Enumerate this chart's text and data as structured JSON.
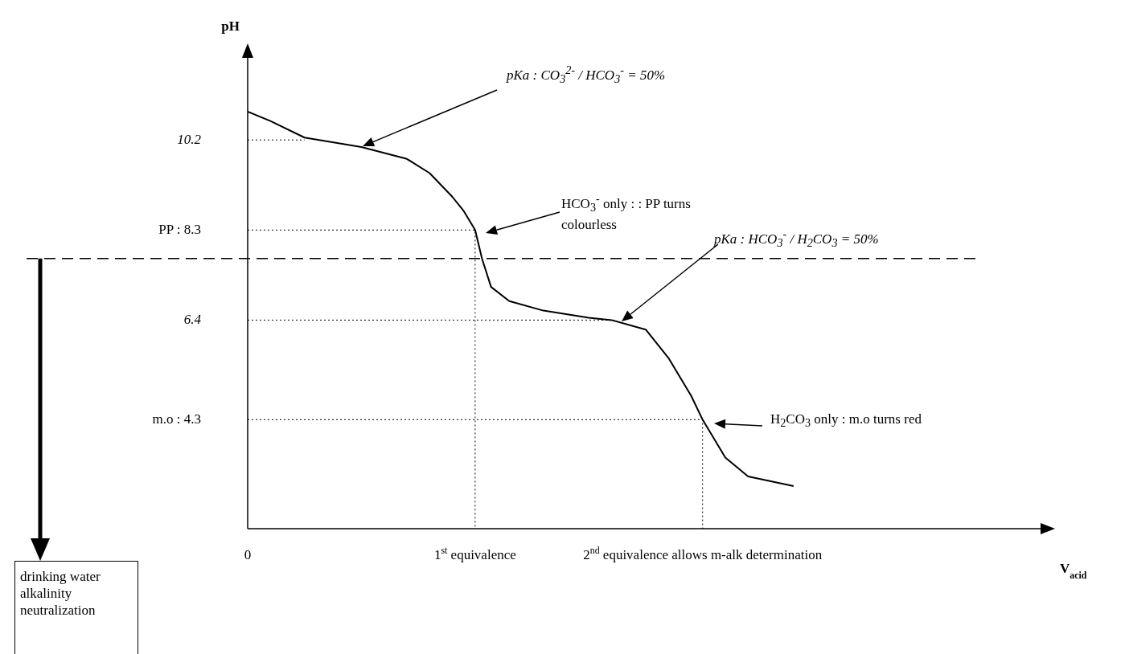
{
  "chart_data": {
    "type": "line",
    "ylabel": "pH",
    "xlabel": "V$_{acid}$",
    "xlim": [
      0,
      3.5
    ],
    "ylim": [
      2,
      12
    ],
    "xticks": [
      0,
      {
        "value": 1,
        "label": "1$^{st}$ equivalence"
      },
      {
        "value": 2,
        "label": "2$^{nd}$ equivalence allows m-alk determination"
      }
    ],
    "yticks": [
      10.2,
      {
        "value": 8.3,
        "label": "PP : 8.3"
      },
      6.4,
      {
        "value": 4.3,
        "label": "m.o : 4.3"
      }
    ],
    "marker": "none",
    "line_style": "solid",
    "series": [
      {
        "color": "#000000",
        "x": [
          0,
          0.1,
          0.25,
          0.5,
          0.7,
          0.8,
          0.9,
          0.95,
          1,
          1.03,
          1.07,
          1.15,
          1.3,
          1.5,
          1.6,
          1.75,
          1.85,
          1.95,
          2,
          2.1,
          2.2,
          2.4
        ],
        "values": [
          10.8,
          10.6,
          10.25,
          10.05,
          9.8,
          9.5,
          9.0,
          8.7,
          8.3,
          7.7,
          7.1,
          6.8,
          6.6,
          6.45,
          6.4,
          6.2,
          5.6,
          4.8,
          4.3,
          3.5,
          3.1,
          2.9
        ]
      },
      {
        "color": "#000000",
        "line_style": "dotted",
        "x": [
          0,
          0.25
        ],
        "values": [
          10.2,
          10.2
        ]
      },
      {
        "color": "#000000",
        "line_style": "dotted",
        "x": [
          0,
          1,
          1
        ],
        "values": [
          8.3,
          8.3,
          2
        ]
      },
      {
        "color": "#000000",
        "line_style": "dotted",
        "x": [
          0,
          1.6
        ],
        "values": [
          6.4,
          6.4
        ]
      },
      {
        "color": "#000000",
        "line_style": "dotted",
        "x": [
          0,
          2,
          2
        ],
        "values": [
          4.3,
          4.3,
          2
        ]
      }
    ],
    "ref_lines": [
      {
        "axis": "y",
        "value": 7.7,
        "line_style": "dashed",
        "color": "#000000"
      }
    ],
    "annotations": [
      "pKa : CO$_{3}$$^{2-}$ / HCO$_{3}$$^{-}$ = 50%",
      "HCO$_{3}$$^{-}$ only : : PP turns colourless",
      "pKa : HCO$_{3}$$^{-}$ / H$_{2}$CO$_{3}$ = 50%",
      "H$_{2}$CO$_{3}$ only : m.o turns red",
      "drinking water alkalinity neutralization"
    ]
  }
}
